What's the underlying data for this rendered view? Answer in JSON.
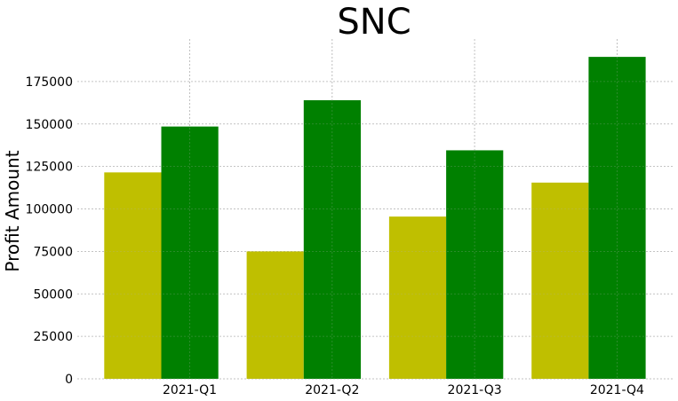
{
  "chart_data": {
    "type": "bar",
    "title": "SNC",
    "xlabel": "",
    "ylabel": "Profit Amount",
    "categories": [
      "2021-Q1",
      "2021-Q2",
      "2021-Q3",
      "2021-Q4"
    ],
    "series": [
      {
        "color": "#bfbf00",
        "values": [
          121500,
          75000,
          95500,
          115500
        ]
      },
      {
        "color": "#008000",
        "values": [
          148500,
          164000,
          134500,
          189500
        ]
      }
    ],
    "ylim": [
      0,
      200000
    ],
    "yticks": [
      0,
      25000,
      50000,
      75000,
      100000,
      125000,
      150000,
      175000
    ],
    "grid": true,
    "legend": "none"
  }
}
